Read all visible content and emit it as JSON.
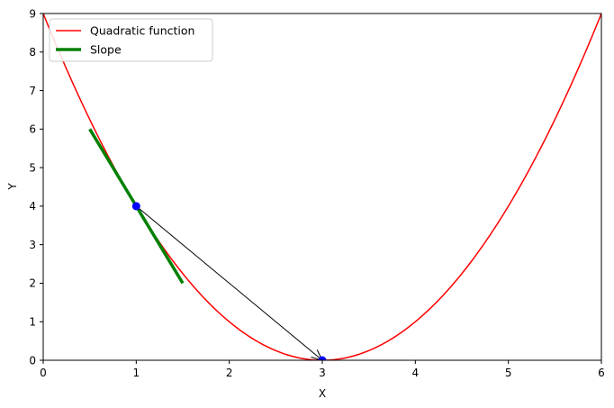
{
  "chart_data": {
    "type": "line",
    "xlabel": "X",
    "ylabel": "Y",
    "xlim": [
      0,
      6
    ],
    "ylim": [
      0,
      9
    ],
    "xticks": [
      "0",
      "1",
      "2",
      "3",
      "4",
      "5",
      "6"
    ],
    "yticks": [
      "0",
      "1",
      "2",
      "3",
      "4",
      "5",
      "6",
      "7",
      "8",
      "9"
    ],
    "grid": false,
    "legend_placement": "top-left",
    "series": [
      {
        "name": "Quadratic function",
        "kind": "curve",
        "function": "(x-3)^2",
        "color": "#ff0000",
        "x": [
          0,
          0.5,
          1,
          1.5,
          2,
          2.5,
          3,
          3.5,
          4,
          4.5,
          5,
          5.5,
          6
        ],
        "y": [
          9,
          6.25,
          4,
          2.25,
          1,
          0.25,
          0,
          0.25,
          1,
          2.25,
          4,
          6.25,
          9
        ]
      },
      {
        "name": "Slope",
        "kind": "tangent",
        "color": "#008000",
        "x": [
          0.5,
          1.5
        ],
        "y": [
          6,
          2
        ]
      }
    ],
    "points": [
      {
        "x": 1,
        "y": 4,
        "color": "#0000ff"
      },
      {
        "x": 3,
        "y": 0,
        "color": "#0000ff"
      }
    ],
    "annotations": [
      {
        "type": "arrow",
        "from": [
          1,
          4
        ],
        "to": [
          3,
          0
        ],
        "color": "#000000"
      }
    ]
  }
}
